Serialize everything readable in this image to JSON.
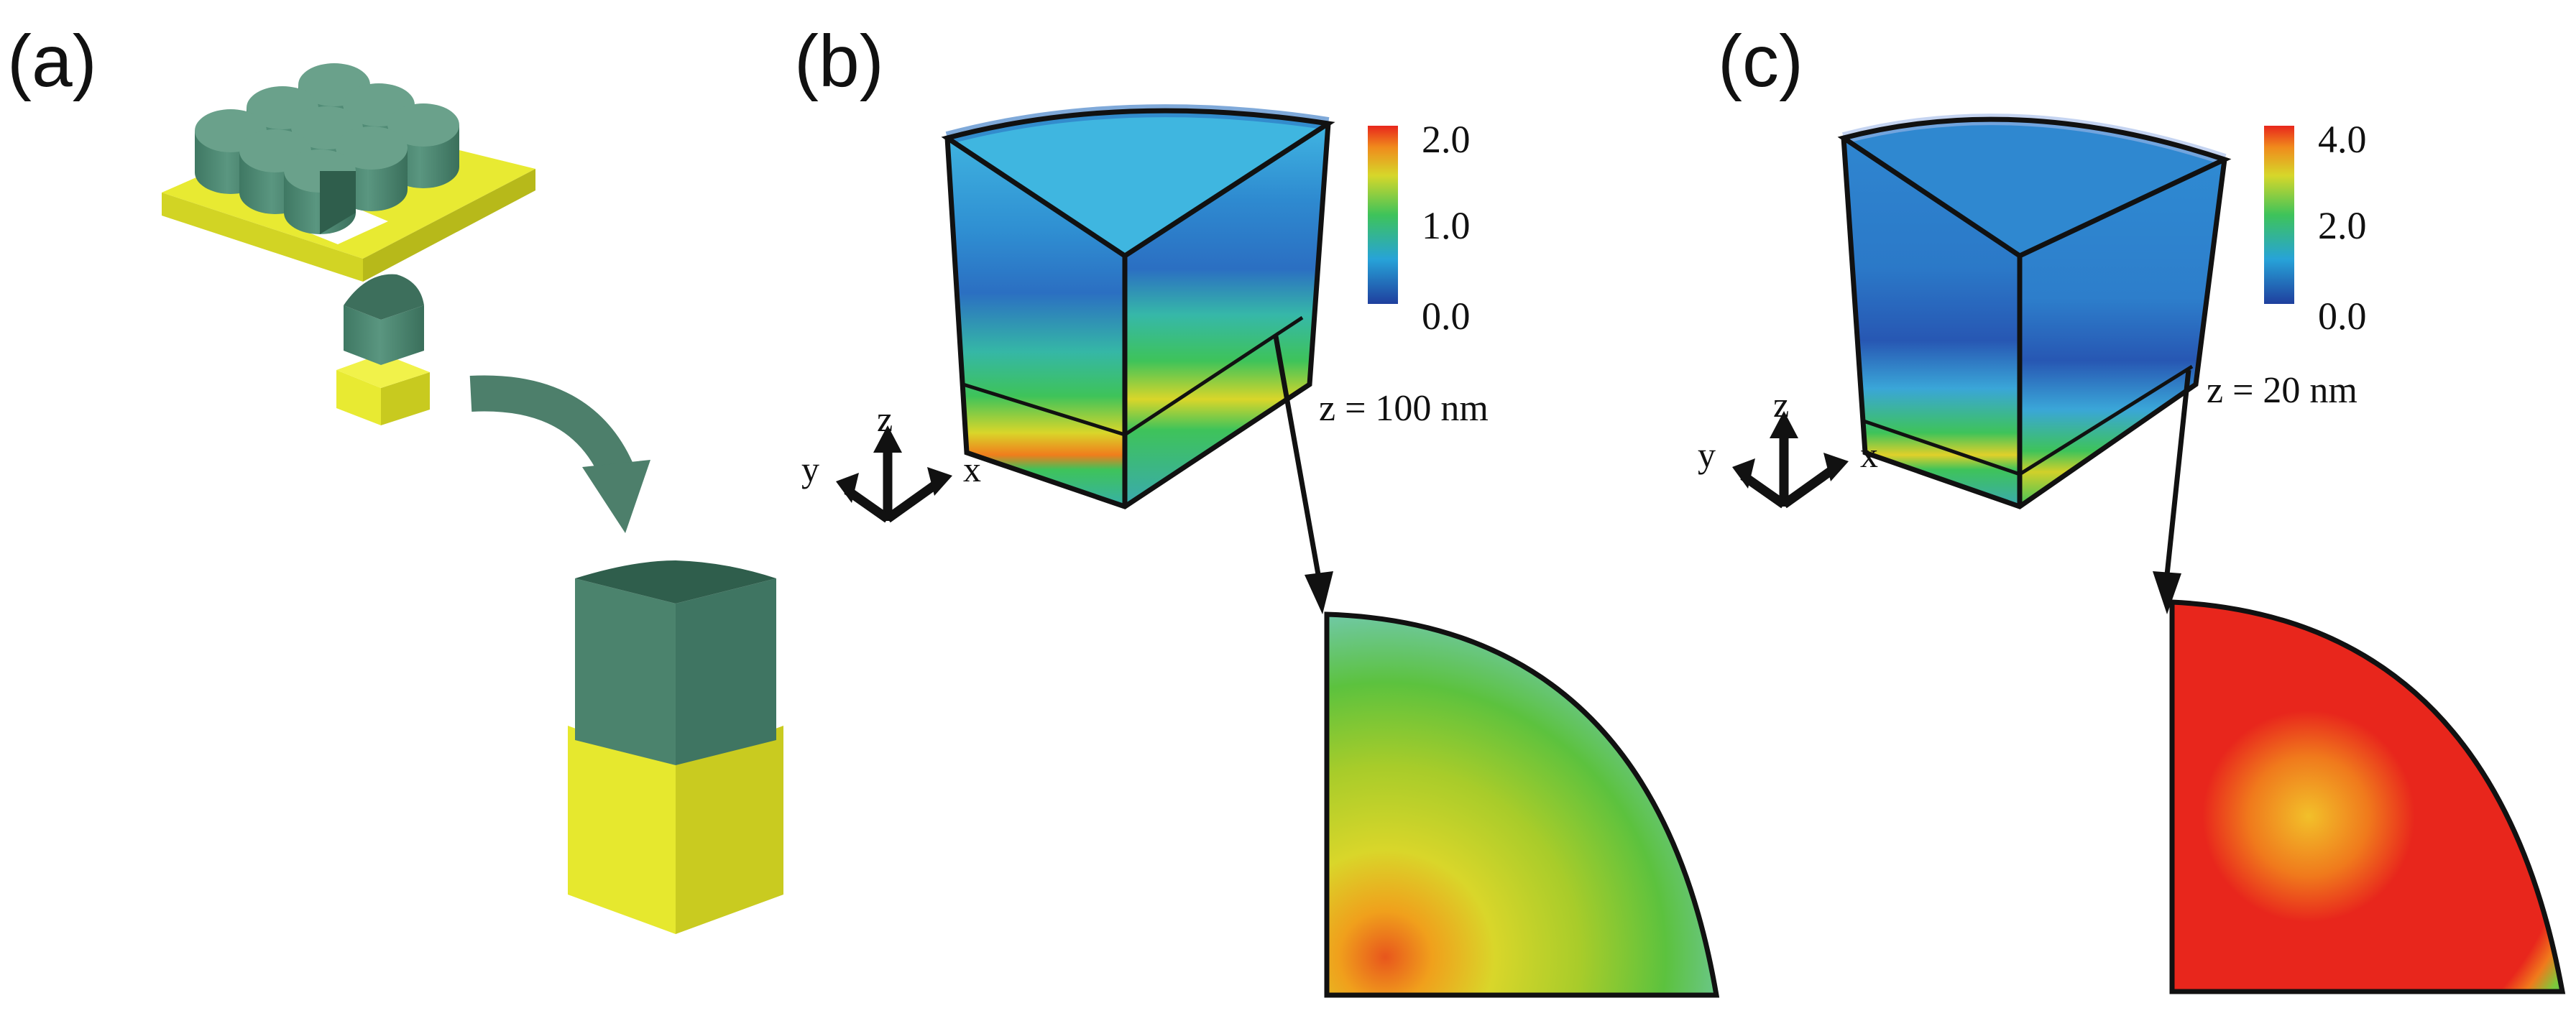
{
  "panels": [
    {
      "label": "(a)"
    },
    {
      "label": "(b)",
      "colorbar": {
        "max": "2.0",
        "mid": "1.0",
        "min": "0.0"
      },
      "slice_label": "z = 100 nm"
    },
    {
      "label": "(c)",
      "colorbar": {
        "max": "4.0",
        "mid": "2.0",
        "min": "0.0"
      },
      "slice_label": "z = 20 nm"
    }
  ],
  "axes": {
    "x": "x",
    "y": "y",
    "z": "z"
  },
  "colors": {
    "pillar": "#4f8a72",
    "pillar_top": "#3d6f5c",
    "substrate": "#e4e62a",
    "substrate_dark": "#b9bb1c",
    "arrow": "#4d7f6b"
  },
  "colormap": [
    "#1f4fa8",
    "#27a3d8",
    "#3ec35a",
    "#d9d62a",
    "#f08a1c",
    "#e8261c"
  ]
}
